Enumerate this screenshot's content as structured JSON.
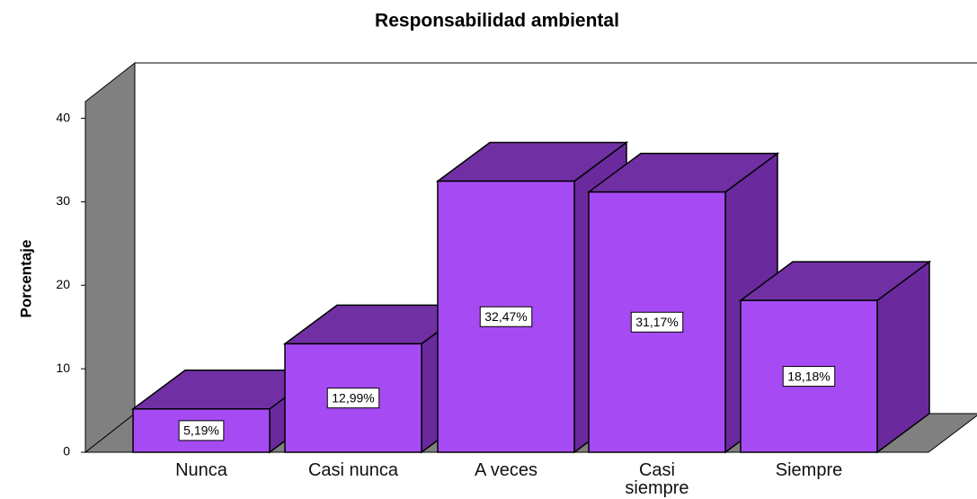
{
  "chart_data": {
    "type": "bar3d",
    "title": "Responsabilidad ambiental",
    "ylabel": "Porcentaje",
    "categories": [
      "Nunca",
      "Casi nunca",
      "A veces",
      "Casi siempre",
      "Siempre"
    ],
    "values": [
      5.19,
      12.99,
      32.47,
      31.17,
      18.18
    ],
    "value_labels": [
      "5,19%",
      "12,99%",
      "32,47%",
      "31,17%",
      "18,18%"
    ],
    "color": "#a64bf4",
    "ylim": [
      0,
      42
    ],
    "yticks": [
      0,
      10,
      20,
      30,
      40
    ],
    "grid": false
  }
}
